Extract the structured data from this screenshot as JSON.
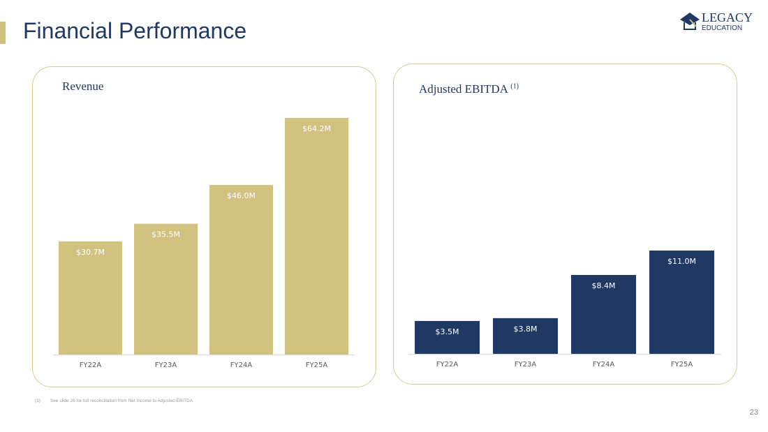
{
  "header": {
    "title": "Financial Performance",
    "logo_text": [
      "LEGACY",
      "EDUCATION"
    ]
  },
  "chart_data": [
    {
      "type": "bar",
      "title": "Revenue",
      "categories": [
        "FY22A",
        "FY23A",
        "FY24A",
        "FY25A"
      ],
      "values": [
        30.7,
        35.5,
        46.0,
        64.2
      ],
      "labels": [
        "$30.7M",
        "$35.5M",
        "$46.0M",
        "$64.2M"
      ],
      "unit": "$M",
      "color": "#d1c27f",
      "ylim": [
        0,
        64.2
      ]
    },
    {
      "type": "bar",
      "title": "Adjusted EBITDA",
      "title_sup": "(1)",
      "categories": [
        "FY22A",
        "FY23A",
        "FY24A",
        "FY25A"
      ],
      "values": [
        3.5,
        3.8,
        8.4,
        11.0
      ],
      "labels": [
        "$3.5M",
        "$3.8M",
        "$8.4M",
        "$11.0M"
      ],
      "unit": "$M",
      "color": "#1f3864",
      "ylim": [
        0,
        11.0
      ]
    }
  ],
  "footnote": {
    "marker": "(1)",
    "text": "See slide 26 for full reconciliation from Net Income to Adjusted EBITDA"
  },
  "page_number": "23"
}
